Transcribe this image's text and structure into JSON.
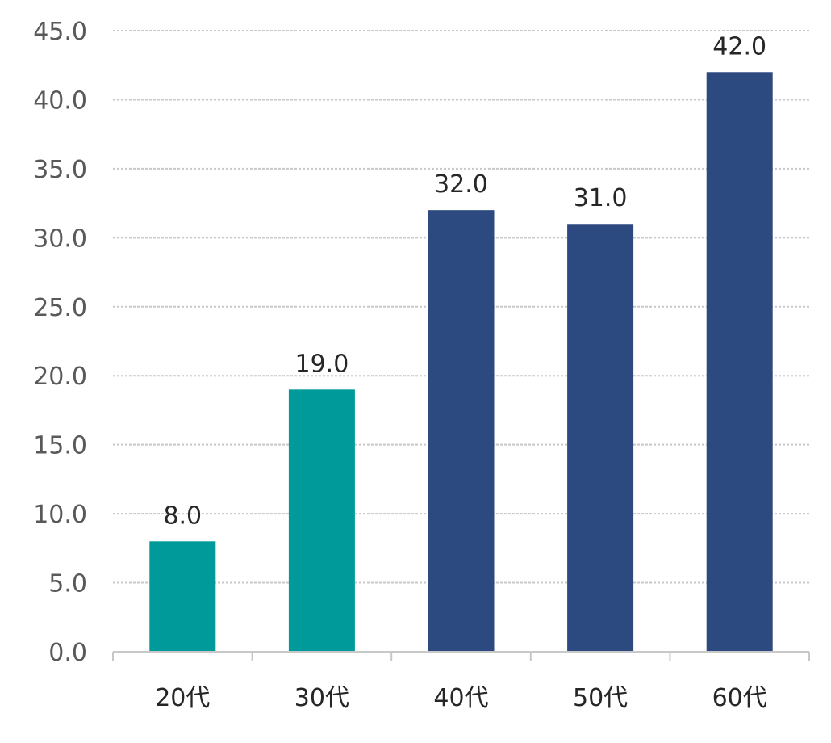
{
  "chart_data": {
    "type": "bar",
    "categories": [
      "20代",
      "30代",
      "40代",
      "50代",
      "60代"
    ],
    "values": [
      8.0,
      19.0,
      32.0,
      31.0,
      42.0
    ],
    "data_labels": [
      "8.0",
      "19.0",
      "32.0",
      "31.0",
      "42.0"
    ],
    "bar_colors": [
      "#009a9a",
      "#009a9a",
      "#2d4a80",
      "#2d4a80",
      "#2d4a80"
    ],
    "y_ticks": [
      "0.0",
      "5.0",
      "10.0",
      "15.0",
      "20.0",
      "25.0",
      "30.0",
      "35.0",
      "40.0",
      "45.0"
    ],
    "ylim": [
      0,
      45
    ],
    "y_step": 5,
    "grid": true,
    "legend": "none",
    "title": "",
    "xlabel": "",
    "ylabel": ""
  }
}
